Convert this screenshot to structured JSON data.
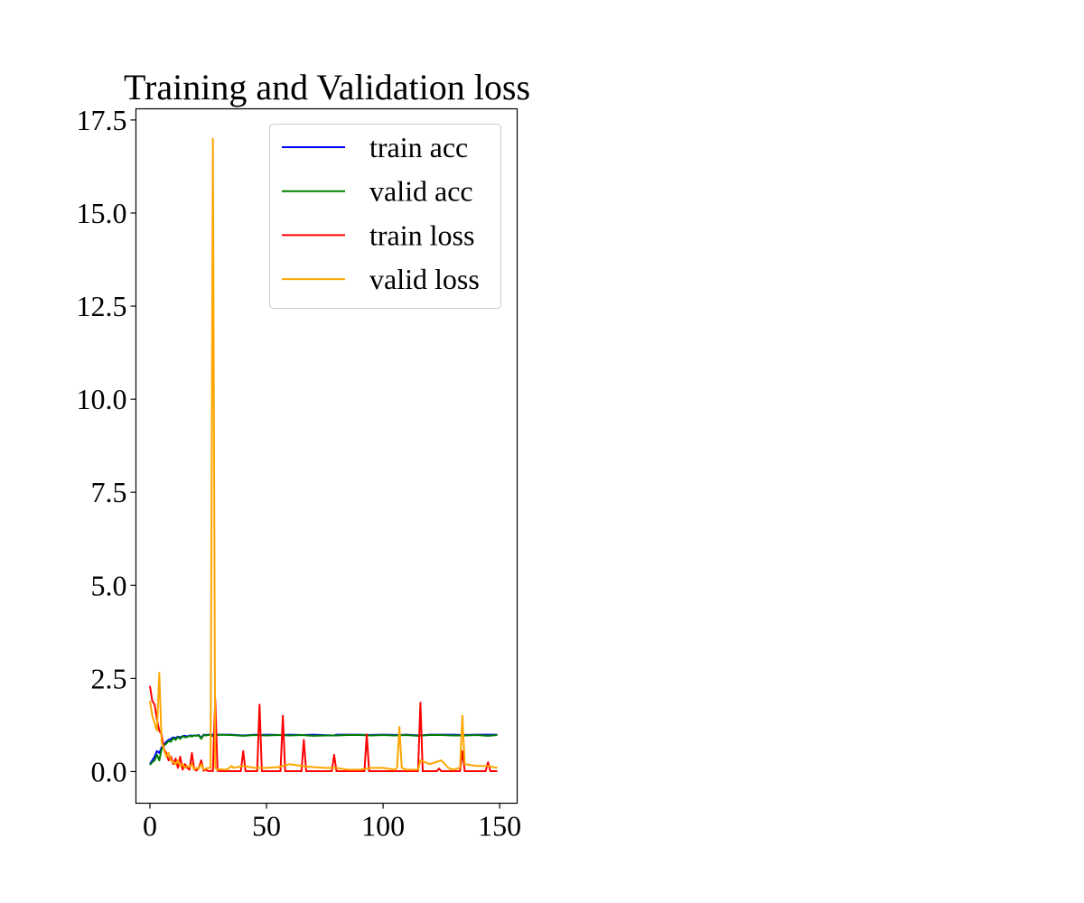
{
  "chart_data": {
    "type": "line",
    "title": "Training and Validation loss",
    "xlim": [
      -6,
      157.5
    ],
    "ylim": [
      -0.85,
      17.8
    ],
    "x_ticks": [
      0,
      50,
      100,
      150
    ],
    "x_tick_labels": [
      "0",
      "50",
      "100",
      "150"
    ],
    "y_ticks": [
      0,
      2.5,
      5,
      7.5,
      10,
      12.5,
      15,
      17.5
    ],
    "y_tick_labels": [
      "0.0",
      "2.5",
      "5.0",
      "7.5",
      "10.0",
      "12.5",
      "15.0",
      "17.5"
    ],
    "grid": false,
    "legend": {
      "placement": "upper right",
      "entries": [
        "train acc",
        "valid acc",
        "train loss",
        "valid loss"
      ]
    },
    "series": [
      {
        "name": "train acc",
        "color": "#0000ff",
        "x": [
          0,
          1,
          2,
          3,
          4,
          5,
          6,
          7,
          8,
          9,
          10,
          11,
          12,
          13,
          14,
          15,
          16,
          17,
          18,
          19,
          20,
          21,
          22,
          23,
          24,
          25,
          26,
          27,
          28,
          29,
          30,
          35,
          40,
          45,
          47,
          50,
          57,
          60,
          66,
          70,
          79,
          80,
          90,
          93,
          100,
          107,
          110,
          116,
          120,
          125,
          130,
          134,
          140,
          145,
          149
        ],
        "y": [
          0.2,
          0.3,
          0.4,
          0.55,
          0.5,
          0.65,
          0.72,
          0.8,
          0.85,
          0.88,
          0.92,
          0.9,
          0.94,
          0.92,
          0.95,
          0.96,
          0.94,
          0.97,
          0.96,
          0.97,
          0.97,
          0.98,
          0.9,
          0.99,
          0.98,
          0.99,
          0.99,
          0.99,
          0.99,
          0.99,
          0.99,
          0.99,
          0.97,
          0.99,
          0.98,
          0.99,
          0.98,
          0.99,
          0.98,
          0.99,
          0.97,
          0.99,
          0.99,
          0.98,
          0.99,
          0.98,
          0.99,
          0.97,
          0.99,
          0.99,
          0.99,
          0.98,
          0.99,
          0.99,
          0.99
        ]
      },
      {
        "name": "valid acc",
        "color": "#008000",
        "x": [
          0,
          1,
          2,
          3,
          4,
          5,
          6,
          7,
          8,
          9,
          10,
          11,
          12,
          13,
          14,
          15,
          16,
          17,
          18,
          19,
          20,
          21,
          22,
          23,
          24,
          25,
          26,
          27,
          28,
          29,
          30,
          35,
          40,
          45,
          50,
          55,
          60,
          65,
          70,
          75,
          80,
          85,
          90,
          95,
          100,
          105,
          110,
          115,
          120,
          125,
          130,
          135,
          140,
          145,
          149
        ],
        "y": [
          0.18,
          0.25,
          0.3,
          0.45,
          0.3,
          0.6,
          0.7,
          0.75,
          0.82,
          0.8,
          0.9,
          0.85,
          0.93,
          0.88,
          0.95,
          0.92,
          0.93,
          0.96,
          0.94,
          0.97,
          0.96,
          0.97,
          0.88,
          0.98,
          0.97,
          0.98,
          0.98,
          0.95,
          0.98,
          0.98,
          0.99,
          0.98,
          0.96,
          0.98,
          0.97,
          0.98,
          0.97,
          0.98,
          0.96,
          0.97,
          0.97,
          0.98,
          0.98,
          0.97,
          0.98,
          0.97,
          0.98,
          0.96,
          0.98,
          0.98,
          0.97,
          0.97,
          0.98,
          0.96,
          0.98
        ]
      },
      {
        "name": "train loss",
        "color": "#ff0000",
        "x": [
          0,
          1,
          2,
          3,
          4,
          5,
          6,
          7,
          8,
          9,
          10,
          11,
          12,
          13,
          14,
          15,
          16,
          17,
          18,
          19,
          20,
          21,
          22,
          23,
          24,
          25,
          26,
          27,
          28,
          29,
          30,
          39,
          40,
          41,
          46,
          47,
          48,
          56,
          57,
          58,
          65,
          66,
          67,
          78,
          79,
          80,
          92,
          93,
          94,
          115,
          116,
          117,
          123,
          124,
          125,
          133,
          134,
          135,
          144,
          145,
          146,
          149
        ],
        "y": [
          2.3,
          1.9,
          1.8,
          1.4,
          1.1,
          1.0,
          0.6,
          0.5,
          0.3,
          0.4,
          0.2,
          0.35,
          0.1,
          0.4,
          0.05,
          0.2,
          0.1,
          0.05,
          0.5,
          0.05,
          0.03,
          0.1,
          0.3,
          0.02,
          0.05,
          0.01,
          0.02,
          0.01,
          1.95,
          0.02,
          0.01,
          0.01,
          0.55,
          0.01,
          0.01,
          1.8,
          0.01,
          0.01,
          1.5,
          0.01,
          0.01,
          0.85,
          0.01,
          0.01,
          0.45,
          0.01,
          0.01,
          1.0,
          0.01,
          0.01,
          1.85,
          0.01,
          0.01,
          0.08,
          0.01,
          0.01,
          0.55,
          0.01,
          0.01,
          0.25,
          0.01,
          0.01
        ]
      },
      {
        "name": "valid loss",
        "color": "#ffa500",
        "x": [
          0,
          1,
          2,
          3,
          4,
          5,
          6,
          7,
          8,
          9,
          10,
          11,
          12,
          13,
          14,
          15,
          16,
          17,
          18,
          19,
          20,
          21,
          22,
          23,
          24,
          25,
          26,
          27,
          28,
          29,
          30,
          33,
          35,
          36,
          40,
          45,
          50,
          55,
          60,
          65,
          70,
          75,
          80,
          85,
          90,
          95,
          100,
          105,
          106,
          107,
          108,
          110,
          115,
          116,
          120,
          125,
          128,
          130,
          133,
          134,
          135,
          140,
          145,
          149
        ],
        "y": [
          1.9,
          1.5,
          1.3,
          1.1,
          2.65,
          0.8,
          0.6,
          0.4,
          0.5,
          0.3,
          0.25,
          0.2,
          0.3,
          0.15,
          0.2,
          0.1,
          0.15,
          0.12,
          0.2,
          0.05,
          0.1,
          0.08,
          0.2,
          0.05,
          0.08,
          0.1,
          0.1,
          17.0,
          0.1,
          0.05,
          0.06,
          0.05,
          0.15,
          0.1,
          0.15,
          0.1,
          0.1,
          0.12,
          0.2,
          0.15,
          0.12,
          0.1,
          0.1,
          0.05,
          0.05,
          0.1,
          0.1,
          0.05,
          0.1,
          1.2,
          0.1,
          0.05,
          0.05,
          0.3,
          0.2,
          0.3,
          0.1,
          0.05,
          0.1,
          1.5,
          0.2,
          0.15,
          0.15,
          0.1
        ]
      }
    ]
  }
}
